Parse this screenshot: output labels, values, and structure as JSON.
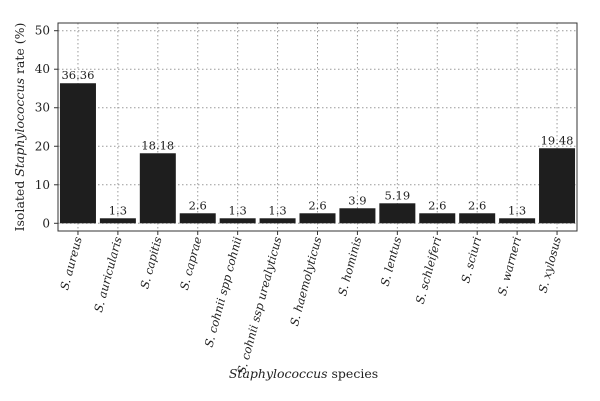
{
  "chart_data": {
    "type": "bar",
    "categories": [
      "S. aureus",
      "S. auricularis",
      "S. capitis",
      "S. caprae",
      "S. cohnii spp cohnii",
      "S. cohnii ssp urealyticus",
      "S. haemolyticus",
      "S. hominis",
      "S. lentus",
      "S. schleiferi",
      "S. sciuri",
      "S. warneri",
      "S. xylosus"
    ],
    "values": [
      36.36,
      1.3,
      18.18,
      2.6,
      1.3,
      1.3,
      2.6,
      3.9,
      5.19,
      2.6,
      2.6,
      1.3,
      19.48
    ],
    "value_labels": [
      "36.36",
      "1.3",
      "18.18",
      "2.6",
      "1.3",
      "1.3",
      "2.6",
      "3.9",
      "5.19",
      "2.6",
      "2.6",
      "1.3",
      "19.48"
    ],
    "xlabel_parts": [
      {
        "text": "Staphylococcus",
        "italic": true
      },
      {
        "text": " species",
        "italic": false
      }
    ],
    "ylabel_parts": [
      {
        "text": "Isolated ",
        "italic": false
      },
      {
        "text": "Staphylococcus",
        "italic": true
      },
      {
        "text": " rate (%)",
        "italic": false
      }
    ],
    "ylim": [
      -2,
      52
    ],
    "yticks": [
      0,
      10,
      20,
      30,
      40,
      50
    ],
    "grid": true,
    "bar_color": "#1e1e1e"
  }
}
